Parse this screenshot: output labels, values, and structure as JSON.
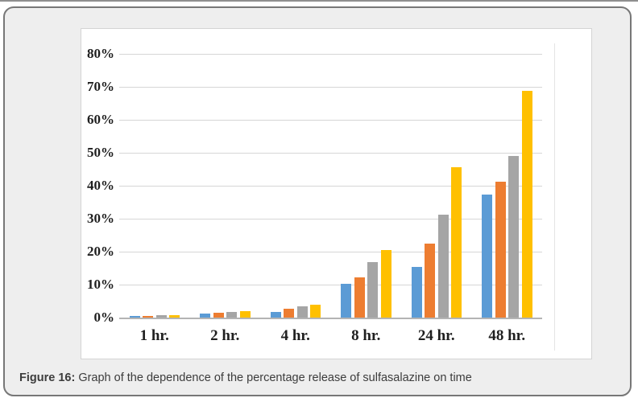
{
  "figure": {
    "caption_label": "Figure 16:",
    "caption_text": " Graph of the dependence of the percentage release of sulfasalazine on time"
  },
  "chart_data": {
    "type": "bar",
    "title": "",
    "xlabel": "",
    "ylabel": "",
    "categories": [
      "1 hr.",
      "2 hr.",
      "4 hr.",
      "8 hr.",
      "24 hr.",
      "48 hr."
    ],
    "series": [
      {
        "name": "series-blue",
        "color": "#5B9BD5",
        "values": [
          0.6,
          1.1,
          1.7,
          10.2,
          15.3,
          37.2
        ]
      },
      {
        "name": "series-orange",
        "color": "#ED7D31",
        "values": [
          0.6,
          1.4,
          2.6,
          12.3,
          22.4,
          41.3
        ]
      },
      {
        "name": "series-gray",
        "color": "#A5A5A5",
        "values": [
          0.7,
          1.6,
          3.4,
          16.9,
          31.2,
          49.0
        ]
      },
      {
        "name": "series-yellow",
        "color": "#FFC000",
        "values": [
          0.8,
          1.9,
          4.0,
          20.4,
          45.6,
          68.8
        ]
      }
    ],
    "y_ticks": [
      "80%",
      "70%",
      "60%",
      "50%",
      "40%",
      "30%",
      "20%",
      "10%",
      "0%"
    ],
    "ylim": [
      0,
      80
    ],
    "y_tick_step": 10,
    "grid": true,
    "legend": "none"
  },
  "palette": {
    "card_background": "#eeeeee",
    "card_border": "#777777",
    "panel_background": "#ffffff",
    "gridline": "#d6d6d6",
    "axis_baseline": "#b4b4b4",
    "axis_text": "#1f1f1f",
    "caption_text": "#3c3c3c",
    "top_rule": "#8f8f8f"
  }
}
